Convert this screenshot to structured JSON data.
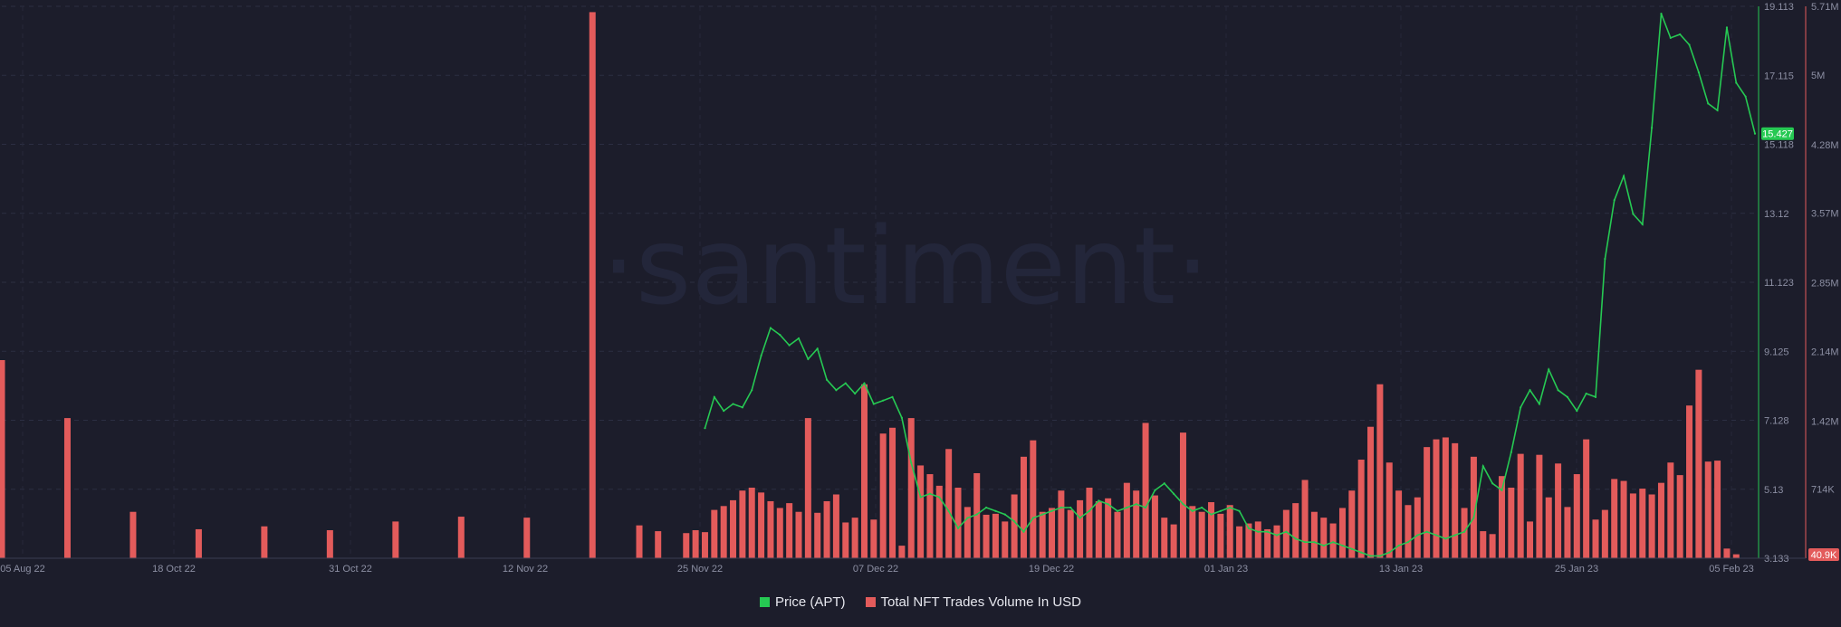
{
  "chart_data": {
    "type": "bar+line",
    "watermark": "·santiment·",
    "x_tick_labels": [
      "05 Aug 22",
      "18 Oct 22",
      "31 Oct 22",
      "12 Nov 22",
      "25 Nov 22",
      "07 Dec 22",
      "19 Dec 22",
      "01 Jan 23",
      "13 Jan 23",
      "25 Jan 23",
      "05 Feb 23"
    ],
    "price_axis": {
      "ticks": [
        "3.133",
        "5.13",
        "7.128",
        "9.125",
        "11.123",
        "13.12",
        "15.118",
        "17.115",
        "19.113"
      ],
      "ylim": [
        3.133,
        19.113
      ],
      "last_value_label": "15.427",
      "color": "#26c953"
    },
    "volume_axis": {
      "ticks": [
        "714K",
        "1.42M",
        "2.14M",
        "2.85M",
        "3.57M",
        "4.28M",
        "5M",
        "5.71M"
      ],
      "ylim": [
        0,
        5710000
      ],
      "last_value_label": "40.9K",
      "color": "#e35b5b"
    },
    "series": [
      {
        "name": "Price (APT)",
        "type": "line",
        "color": "#26c953",
        "points": [
          [
            "2022-10-19",
            6.9
          ],
          [
            "2022-10-20",
            7.8
          ],
          [
            "2022-10-21",
            7.4
          ],
          [
            "2022-10-22",
            7.6
          ],
          [
            "2022-10-23",
            7.5
          ],
          [
            "2022-10-24",
            8.0
          ],
          [
            "2022-10-25",
            9.0
          ],
          [
            "2022-10-26",
            9.8
          ],
          [
            "2022-10-27",
            9.6
          ],
          [
            "2022-10-28",
            9.3
          ],
          [
            "2022-10-29",
            9.5
          ],
          [
            "2022-10-30",
            8.9
          ],
          [
            "2022-10-31",
            9.2
          ],
          [
            "2022-11-01",
            8.3
          ],
          [
            "2022-11-02",
            8.0
          ],
          [
            "2022-11-03",
            8.2
          ],
          [
            "2022-11-04",
            7.9
          ],
          [
            "2022-11-05",
            8.2
          ],
          [
            "2022-11-06",
            7.6
          ],
          [
            "2022-11-07",
            7.7
          ],
          [
            "2022-11-08",
            7.8
          ],
          [
            "2022-11-09",
            7.2
          ],
          [
            "2022-11-10",
            5.9
          ],
          [
            "2022-11-11",
            4.9
          ],
          [
            "2022-11-12",
            5.0
          ],
          [
            "2022-11-13",
            4.9
          ],
          [
            "2022-11-14",
            4.5
          ],
          [
            "2022-11-15",
            4.0
          ],
          [
            "2022-11-16",
            4.3
          ],
          [
            "2022-11-17",
            4.4
          ],
          [
            "2022-11-18",
            4.6
          ],
          [
            "2022-11-19",
            4.5
          ],
          [
            "2022-11-20",
            4.4
          ],
          [
            "2022-11-21",
            4.2
          ],
          [
            "2022-11-22",
            3.9
          ],
          [
            "2022-11-23",
            4.3
          ],
          [
            "2022-11-24",
            4.4
          ],
          [
            "2022-11-25",
            4.5
          ],
          [
            "2022-11-26",
            4.6
          ],
          [
            "2022-11-27",
            4.6
          ],
          [
            "2022-11-28",
            4.3
          ],
          [
            "2022-11-29",
            4.5
          ],
          [
            "2022-11-30",
            4.8
          ],
          [
            "2022-12-01",
            4.7
          ],
          [
            "2022-12-02",
            4.5
          ],
          [
            "2022-12-03",
            4.6
          ],
          [
            "2022-12-04",
            4.7
          ],
          [
            "2022-12-05",
            4.6
          ],
          [
            "2022-12-06",
            5.1
          ],
          [
            "2022-12-07",
            5.3
          ],
          [
            "2022-12-08",
            5.0
          ],
          [
            "2022-12-09",
            4.7
          ],
          [
            "2022-12-10",
            4.5
          ],
          [
            "2022-12-11",
            4.6
          ],
          [
            "2022-12-12",
            4.4
          ],
          [
            "2022-12-13",
            4.5
          ],
          [
            "2022-12-14",
            4.6
          ],
          [
            "2022-12-15",
            4.5
          ],
          [
            "2022-12-16",
            4.0
          ],
          [
            "2022-12-17",
            3.9
          ],
          [
            "2022-12-18",
            3.9
          ],
          [
            "2022-12-19",
            3.8
          ],
          [
            "2022-12-20",
            3.9
          ],
          [
            "2022-12-21",
            3.7
          ],
          [
            "2022-12-22",
            3.6
          ],
          [
            "2022-12-23",
            3.6
          ],
          [
            "2022-12-24",
            3.5
          ],
          [
            "2022-12-25",
            3.6
          ],
          [
            "2022-12-26",
            3.5
          ],
          [
            "2022-12-27",
            3.4
          ],
          [
            "2022-12-28",
            3.3
          ],
          [
            "2022-12-29",
            3.2
          ],
          [
            "2022-12-30",
            3.2
          ],
          [
            "2022-12-31",
            3.3
          ],
          [
            "2023-01-01",
            3.5
          ],
          [
            "2023-01-02",
            3.6
          ],
          [
            "2023-01-03",
            3.8
          ],
          [
            "2023-01-04",
            3.9
          ],
          [
            "2023-01-05",
            3.8
          ],
          [
            "2023-01-06",
            3.7
          ],
          [
            "2023-01-07",
            3.8
          ],
          [
            "2023-01-08",
            3.9
          ],
          [
            "2023-01-09",
            4.3
          ],
          [
            "2023-01-10",
            5.8
          ],
          [
            "2023-01-11",
            5.3
          ],
          [
            "2023-01-12",
            5.1
          ],
          [
            "2023-01-13",
            6.2
          ],
          [
            "2023-01-14",
            7.5
          ],
          [
            "2023-01-15",
            8.0
          ],
          [
            "2023-01-16",
            7.6
          ],
          [
            "2023-01-17",
            8.6
          ],
          [
            "2023-01-18",
            8.0
          ],
          [
            "2023-01-19",
            7.8
          ],
          [
            "2023-01-20",
            7.4
          ],
          [
            "2023-01-21",
            7.9
          ],
          [
            "2023-01-22",
            7.8
          ],
          [
            "2023-01-23",
            11.8
          ],
          [
            "2023-01-24",
            13.5
          ],
          [
            "2023-01-25",
            14.2
          ],
          [
            "2023-01-26",
            13.1
          ],
          [
            "2023-01-27",
            12.8
          ],
          [
            "2023-01-28",
            15.6
          ],
          [
            "2023-01-29",
            18.9
          ],
          [
            "2023-01-30",
            18.2
          ],
          [
            "2023-01-31",
            18.3
          ],
          [
            "2023-02-01",
            18.0
          ],
          [
            "2023-02-02",
            17.2
          ],
          [
            "2023-02-03",
            16.3
          ],
          [
            "2023-02-04",
            16.1
          ],
          [
            "2023-02-05",
            18.5
          ],
          [
            "2023-02-06",
            16.9
          ],
          [
            "2023-02-07",
            16.5
          ],
          [
            "2023-02-08",
            15.427
          ]
        ]
      },
      {
        "name": "Total NFT Trades Volume In USD",
        "type": "bar",
        "color": "#e35b5b",
        "points": [
          [
            "2022-08-05",
            2050000
          ],
          [
            "2022-08-12",
            1450000
          ],
          [
            "2022-08-19",
            480000
          ],
          [
            "2022-08-26",
            300000
          ],
          [
            "2022-09-02",
            330000
          ],
          [
            "2022-09-09",
            290000
          ],
          [
            "2022-09-16",
            380000
          ],
          [
            "2022-09-23",
            430000
          ],
          [
            "2022-09-30",
            420000
          ],
          [
            "2022-10-07",
            5650000
          ],
          [
            "2022-10-12",
            340000
          ],
          [
            "2022-10-14",
            280000
          ],
          [
            "2022-10-17",
            260000
          ],
          [
            "2022-10-18",
            290000
          ],
          [
            "2022-10-19",
            270000
          ],
          [
            "2022-10-20",
            500000
          ],
          [
            "2022-10-21",
            540000
          ],
          [
            "2022-10-22",
            600000
          ],
          [
            "2022-10-23",
            700000
          ],
          [
            "2022-10-24",
            730000
          ],
          [
            "2022-10-25",
            680000
          ],
          [
            "2022-10-26",
            590000
          ],
          [
            "2022-10-27",
            520000
          ],
          [
            "2022-10-28",
            570000
          ],
          [
            "2022-10-29",
            480000
          ],
          [
            "2022-10-30",
            1450000
          ],
          [
            "2022-10-31",
            470000
          ],
          [
            "2022-11-01",
            590000
          ],
          [
            "2022-11-02",
            660000
          ],
          [
            "2022-11-03",
            370000
          ],
          [
            "2022-11-04",
            420000
          ],
          [
            "2022-11-05",
            1800000
          ],
          [
            "2022-11-06",
            400000
          ],
          [
            "2022-11-07",
            1290000
          ],
          [
            "2022-11-08",
            1350000
          ],
          [
            "2022-11-09",
            130000
          ],
          [
            "2022-11-10",
            1450000
          ],
          [
            "2022-11-11",
            960000
          ],
          [
            "2022-11-12",
            870000
          ],
          [
            "2022-11-13",
            750000
          ],
          [
            "2022-11-14",
            1130000
          ],
          [
            "2022-11-15",
            730000
          ],
          [
            "2022-11-16",
            530000
          ],
          [
            "2022-11-17",
            880000
          ],
          [
            "2022-11-18",
            450000
          ],
          [
            "2022-11-19",
            460000
          ],
          [
            "2022-11-20",
            380000
          ],
          [
            "2022-11-21",
            660000
          ],
          [
            "2022-11-22",
            1050000
          ],
          [
            "2022-11-23",
            1220000
          ],
          [
            "2022-11-24",
            480000
          ],
          [
            "2022-11-25",
            520000
          ],
          [
            "2022-11-26",
            700000
          ],
          [
            "2022-11-27",
            500000
          ],
          [
            "2022-11-28",
            600000
          ],
          [
            "2022-11-29",
            730000
          ],
          [
            "2022-11-30",
            590000
          ],
          [
            "2022-12-01",
            620000
          ],
          [
            "2022-12-02",
            480000
          ],
          [
            "2022-12-03",
            780000
          ],
          [
            "2022-12-04",
            700000
          ],
          [
            "2022-12-05",
            1400000
          ],
          [
            "2022-12-06",
            650000
          ],
          [
            "2022-12-07",
            420000
          ],
          [
            "2022-12-08",
            350000
          ],
          [
            "2022-12-09",
            1300000
          ],
          [
            "2022-12-10",
            540000
          ],
          [
            "2022-12-11",
            480000
          ],
          [
            "2022-12-12",
            580000
          ],
          [
            "2022-12-13",
            460000
          ],
          [
            "2022-12-14",
            550000
          ],
          [
            "2022-12-15",
            330000
          ],
          [
            "2022-12-16",
            360000
          ],
          [
            "2022-12-17",
            380000
          ],
          [
            "2022-12-18",
            300000
          ],
          [
            "2022-12-19",
            340000
          ],
          [
            "2022-12-20",
            500000
          ],
          [
            "2022-12-21",
            570000
          ],
          [
            "2022-12-22",
            810000
          ],
          [
            "2022-12-23",
            480000
          ],
          [
            "2022-12-24",
            420000
          ],
          [
            "2022-12-25",
            360000
          ],
          [
            "2022-12-26",
            520000
          ],
          [
            "2022-12-27",
            700000
          ],
          [
            "2022-12-28",
            1020000
          ],
          [
            "2022-12-29",
            1360000
          ],
          [
            "2022-12-30",
            1800000
          ],
          [
            "2022-12-31",
            990000
          ],
          [
            "2023-01-01",
            700000
          ],
          [
            "2023-01-02",
            550000
          ],
          [
            "2023-01-03",
            630000
          ],
          [
            "2023-01-04",
            1150000
          ],
          [
            "2023-01-05",
            1230000
          ],
          [
            "2023-01-06",
            1250000
          ],
          [
            "2023-01-07",
            1190000
          ],
          [
            "2023-01-08",
            520000
          ],
          [
            "2023-01-09",
            1050000
          ],
          [
            "2023-01-10",
            280000
          ],
          [
            "2023-01-11",
            250000
          ],
          [
            "2023-01-12",
            850000
          ],
          [
            "2023-01-13",
            730000
          ],
          [
            "2023-01-14",
            1080000
          ],
          [
            "2023-01-15",
            380000
          ],
          [
            "2023-01-16",
            1070000
          ],
          [
            "2023-01-17",
            630000
          ],
          [
            "2023-01-18",
            980000
          ],
          [
            "2023-01-19",
            530000
          ],
          [
            "2023-01-20",
            870000
          ],
          [
            "2023-01-21",
            1230000
          ],
          [
            "2023-01-22",
            400000
          ],
          [
            "2023-01-23",
            500000
          ],
          [
            "2023-01-24",
            820000
          ],
          [
            "2023-01-25",
            800000
          ],
          [
            "2023-01-26",
            670000
          ],
          [
            "2023-01-27",
            720000
          ],
          [
            "2023-01-28",
            660000
          ],
          [
            "2023-01-29",
            780000
          ],
          [
            "2023-01-30",
            990000
          ],
          [
            "2023-01-31",
            860000
          ],
          [
            "2023-02-01",
            1580000
          ],
          [
            "2023-02-02",
            1950000
          ],
          [
            "2023-02-03",
            1000000
          ],
          [
            "2023-02-04",
            1010000
          ],
          [
            "2023-02-05",
            100000
          ],
          [
            "2023-02-06",
            40900
          ]
        ]
      }
    ],
    "legend": [
      "Price (APT)",
      "Total NFT Trades Volume In USD"
    ],
    "legend_position": "bottom-center",
    "grid": true
  }
}
